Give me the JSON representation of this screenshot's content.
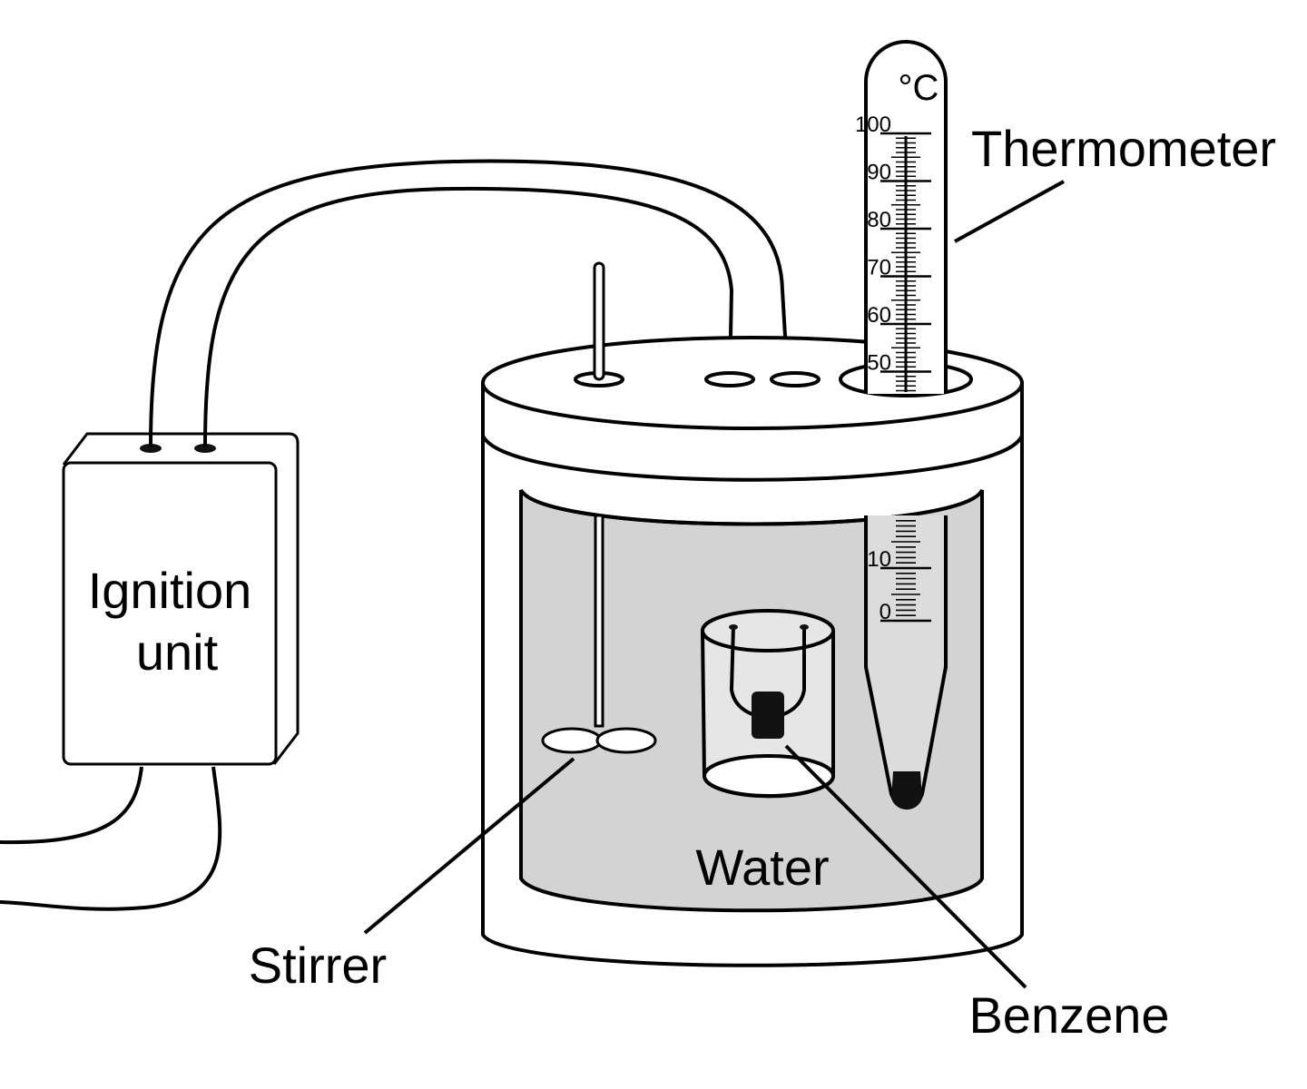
{
  "labels": {
    "thermometer": "Thermometer",
    "ignition_line1": "Ignition",
    "ignition_line2": "unit",
    "water": "Water",
    "stirrer": "Stirrer",
    "benzene": "Benzene"
  },
  "thermometer": {
    "unit": "°C",
    "upper_scale": [
      "100",
      "90",
      "80",
      "70",
      "60",
      "50"
    ],
    "lower_scale": [
      "10",
      "0"
    ]
  },
  "colors": {
    "line": "#000000",
    "water": "#d3d3d3",
    "background": "#ffffff",
    "charge": "#111111"
  }
}
